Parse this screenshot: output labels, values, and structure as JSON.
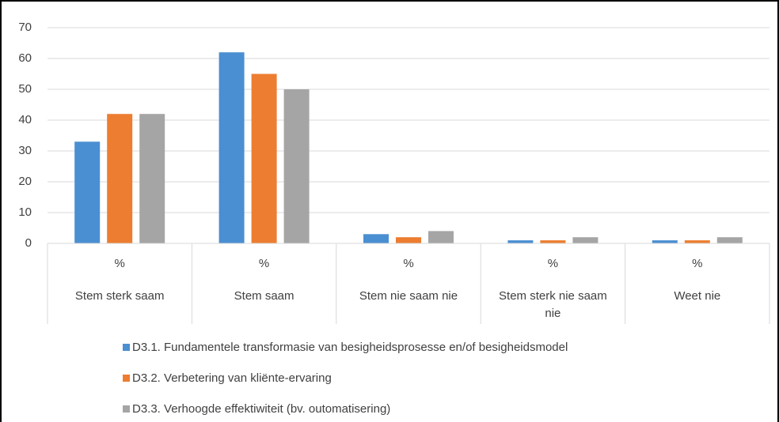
{
  "chart_data": {
    "type": "bar",
    "categories": [
      "%",
      "%",
      "%",
      "%",
      "%"
    ],
    "category_groups": [
      "Stem sterk saam",
      "Stem saam",
      "Stem nie saam nie",
      "Stem sterk nie saam nie",
      "Weet nie"
    ],
    "series": [
      {
        "name": "D3.1. Fundamentele transformasie van besigheidsprosesse en/of besigheidsmodel",
        "color": "#4a8fd1",
        "values": [
          33,
          62,
          3,
          1,
          1
        ]
      },
      {
        "name": "D3.2. Verbetering van kliënte-ervaring",
        "color": "#ed7d31",
        "values": [
          42,
          55,
          2,
          1,
          1
        ]
      },
      {
        "name": "D3.3. Verhoogde effektiwiteit (bv. outomatisering)",
        "color": "#a5a5a5",
        "values": [
          42,
          50,
          4,
          2,
          2
        ]
      }
    ],
    "ylim": [
      0,
      70
    ],
    "yticks": [
      0,
      10,
      20,
      30,
      40,
      50,
      60,
      70
    ],
    "grid": true,
    "legend": "bottom"
  }
}
